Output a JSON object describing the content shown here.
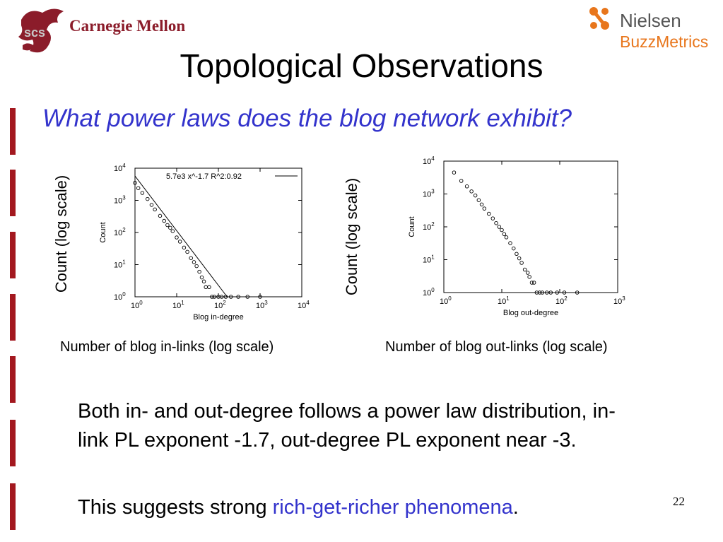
{
  "header": {
    "left_logo_text": "Carnegie Mellon",
    "left_logo_mark": "scs",
    "right_logo_line1": "Nielsen",
    "right_logo_line2": "BuzzMetrics",
    "colors": {
      "cmu_red": "#8b1c2a",
      "nielsen_orange": "#e8761c",
      "accent_blue": "#3333cc"
    }
  },
  "slide": {
    "title": "Topological Observations",
    "subtitle": "What power laws does the blog network exhibit?",
    "page_number": "22"
  },
  "figure_left": {
    "outer_ylabel": "Count (log scale)",
    "caption": "Number of blog in-links (log scale)"
  },
  "figure_right": {
    "outer_ylabel": "Count (log scale)",
    "caption": "Number of blog out-links (log scale)"
  },
  "body": {
    "paragraph1": "Both in- and out-degree follows a power law distribution, in-link PL exponent -1.7, out-degree PL exponent near -3.",
    "paragraph2_prefix": "This suggests strong ",
    "paragraph2_link": "rich-get-richer phenomena",
    "paragraph2_suffix": "."
  },
  "chart_data": [
    {
      "type": "scatter",
      "title": "",
      "xlabel": "Blog in-degree",
      "ylabel": "Count",
      "xscale": "log",
      "yscale": "log",
      "xlim": [
        1,
        10000
      ],
      "ylim": [
        1,
        10000
      ],
      "xticks": [
        "10^0",
        "10^1",
        "10^2",
        "10^3",
        "10^4"
      ],
      "yticks": [
        "10^0",
        "10^1",
        "10^2",
        "10^3",
        "10^4"
      ],
      "legend": {
        "placement": "top-right",
        "entries": [
          "5.7e3 x^-1.7 R^2:0.92"
        ]
      },
      "fit": {
        "coef": 5700,
        "exponent": -1.7,
        "r2": 0.92
      },
      "series": [
        {
          "x": [
            1,
            1.2,
            1.5,
            2,
            2.5,
            3,
            4,
            5,
            6,
            7,
            8,
            10,
            12,
            15,
            18,
            22,
            26,
            30,
            35,
            40,
            45,
            50,
            60,
            70,
            80,
            100,
            120,
            150,
            200,
            300,
            500,
            1000
          ],
          "y": [
            3500,
            2400,
            1700,
            1100,
            720,
            520,
            330,
            230,
            170,
            140,
            110,
            70,
            52,
            34,
            25,
            16,
            12,
            9,
            6,
            4,
            3,
            2,
            2,
            1,
            1,
            1,
            1,
            1,
            1,
            1,
            1,
            1
          ]
        }
      ]
    },
    {
      "type": "scatter",
      "title": "",
      "xlabel": "Blog out-degree",
      "ylabel": "Count",
      "xscale": "log",
      "yscale": "log",
      "xlim": [
        1,
        1000
      ],
      "ylim": [
        1,
        10000
      ],
      "xticks": [
        "10^0",
        "10^1",
        "10^2",
        "10^3"
      ],
      "yticks": [
        "10^0",
        "10^1",
        "10^2",
        "10^3",
        "10^4"
      ],
      "series": [
        {
          "x": [
            1.5,
            2,
            2.5,
            3,
            3.5,
            4,
            4.5,
            5,
            6,
            7,
            8,
            9,
            10,
            11,
            12,
            14,
            16,
            18,
            20,
            22,
            25,
            28,
            30,
            33,
            36,
            40,
            45,
            50,
            60,
            70,
            90,
            120,
            200
          ],
          "y": [
            4500,
            2500,
            1700,
            1200,
            900,
            650,
            480,
            360,
            250,
            180,
            130,
            100,
            80,
            60,
            48,
            32,
            22,
            15,
            11,
            8,
            5,
            4,
            3,
            2,
            2,
            1,
            1,
            1,
            1,
            1,
            1,
            1,
            1
          ]
        }
      ]
    }
  ]
}
